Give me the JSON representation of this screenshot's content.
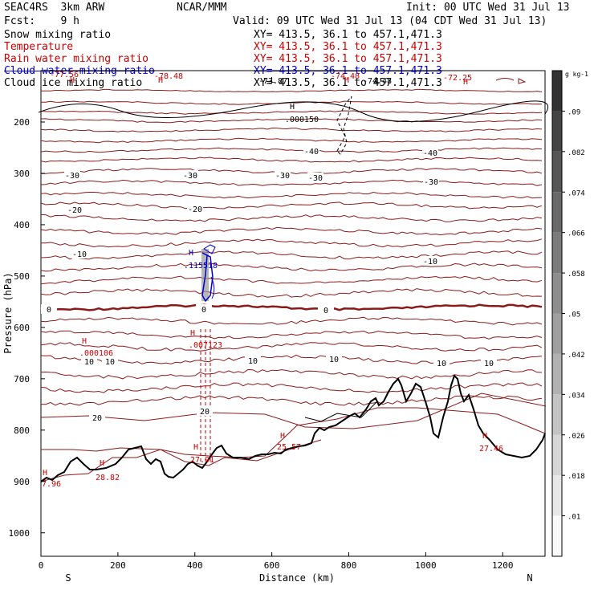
{
  "header": {
    "model": "SEAC4RS  3km ARW",
    "org": "NCAR/MMM",
    "init": "Init: 00 UTC Wed 31 Jul 13",
    "fcst": "Fcst:    9 h",
    "valid": "Valid: 09 UTC Wed 31 Jul 13 (04 CDT Wed 31 Jul 13)",
    "fields": [
      {
        "label": "Snow mixing ratio",
        "color": "#000000"
      },
      {
        "label": "Temperature",
        "color": "#cc0000"
      },
      {
        "label": "Rain water mixing ratio",
        "color": "#cc0000"
      },
      {
        "label": "Cloud water mixing ratio",
        "color": "#0000cc"
      },
      {
        "label": "Cloud ice mixing ratio",
        "color": "#000000"
      }
    ],
    "xy": "XY= 413.5, 36.1 to 457.1,471.3"
  },
  "chart_data": {
    "type": "contour-cross-section",
    "xlabel": "Distance (km)",
    "ylabel": "Pressure (hPa)",
    "x_ticks": [
      0,
      200,
      400,
      600,
      800,
      1000,
      1200
    ],
    "y_ticks": [
      200,
      300,
      400,
      500,
      600,
      700,
      800,
      900,
      1000
    ],
    "xlim": [
      0,
      1310
    ],
    "ylim_pressure": [
      1050,
      100
    ],
    "end_labels": {
      "left": "S",
      "right": "N"
    },
    "colorbar": {
      "unit": "g kg-1",
      "ticks": [
        ".01",
        ".018",
        ".026",
        ".034",
        ".042",
        ".05",
        ".058",
        ".066",
        ".074",
        ".082",
        ".09"
      ]
    },
    "temperature_contours": [
      {
        "value": -20,
        "labels": [
          "-20",
          "-20"
        ]
      },
      {
        "value": -10,
        "labels": [
          "-10",
          "-10"
        ]
      },
      {
        "value": 0,
        "labels": [
          "0",
          "0",
          "0"
        ]
      },
      {
        "value": 10,
        "labels": [
          "10",
          "10",
          "10",
          "10",
          "10",
          "10"
        ]
      },
      {
        "value": 20,
        "labels": [
          "20",
          "20"
        ]
      },
      {
        "value": -30,
        "labels": [
          "-30",
          "-30",
          "-30",
          "-30",
          "-30"
        ]
      },
      {
        "value": -40,
        "labels": [
          "-40",
          "-40"
        ]
      }
    ],
    "extrema": [
      {
        "type": "H",
        "value": "-77.56",
        "color": "#cc0000"
      },
      {
        "type": "H",
        "value": "-78.48",
        "color": "#cc0000"
      },
      {
        "type": "H",
        "value": "-74.48",
        "color": "#cc0000"
      },
      {
        "type": "H",
        "value": "-72.25",
        "color": "#cc0000"
      },
      {
        "type": "H",
        "value": ".000150",
        "color": "#000000"
      },
      {
        "type": "H",
        "value": ".115518",
        "color": "#0000cc"
      },
      {
        "type": "H",
        "value": ".007123",
        "color": "#cc0000"
      },
      {
        "type": "H",
        "value": ".000106",
        "color": "#cc0000"
      },
      {
        "type": "H",
        "value": "27.91",
        "color": "#cc0000"
      },
      {
        "type": "H",
        "value": "25.57",
        "color": "#cc0000"
      },
      {
        "type": "H",
        "value": "28.82",
        "color": "#cc0000"
      },
      {
        "type": "H",
        "value": "7.96",
        "color": "#cc0000"
      },
      {
        "type": "H",
        "value": "27.46",
        "color": "#cc0000"
      },
      {
        "type": "L",
        "value": "-73.87",
        "color": "#000000"
      },
      {
        "type": "L",
        "value": "-74.48",
        "color": "#000000"
      }
    ]
  }
}
